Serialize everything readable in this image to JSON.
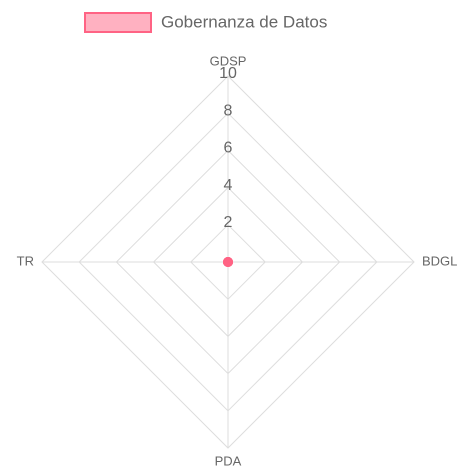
{
  "chart_data": {
    "type": "radar",
    "categories": [
      "GDSP",
      "BDGL",
      "PDA",
      "TR"
    ],
    "series": [
      {
        "name": "Gobernanza de Datos",
        "color": "#ff6384",
        "values": [
          0,
          0,
          0,
          0
        ]
      }
    ],
    "rlim": [
      0,
      10
    ],
    "rticks": [
      2,
      4,
      6,
      8,
      10
    ],
    "grid": true,
    "legend": "top"
  }
}
